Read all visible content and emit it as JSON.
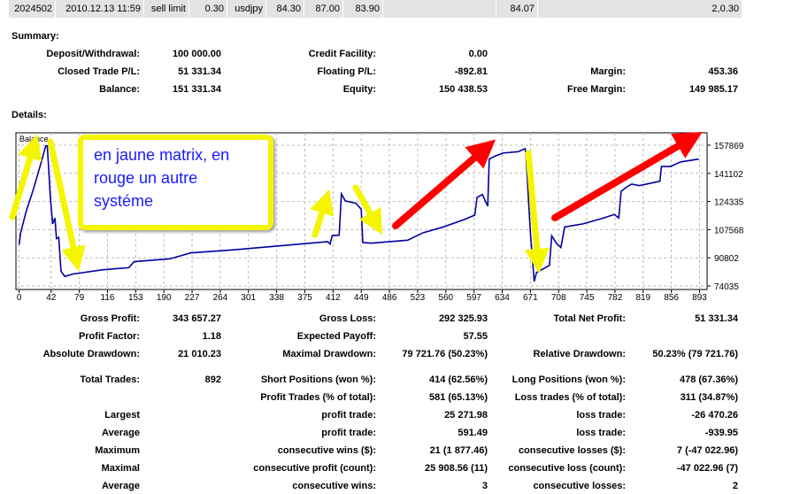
{
  "order_row": [
    "2024502",
    "2010.12.13 11:59",
    "sell limit",
    "0.30",
    "usdjpy",
    "84.30",
    "87.00",
    "83.90",
    "",
    "84.07",
    "2,0.30"
  ],
  "summary": {
    "title": "Summary:",
    "rows": [
      [
        "Deposit/Withdrawal:",
        "100 000.00",
        "Credit Facility:",
        "0.00",
        "",
        ""
      ],
      [
        "Closed Trade P/L:",
        "51 331.34",
        "Floating P/L:",
        "-892.81",
        "Margin:",
        "453.36"
      ],
      [
        "Balance:",
        "151 331.34",
        "Equity:",
        "150 438.53",
        "Free Margin:",
        "149 985.17"
      ]
    ]
  },
  "details": {
    "title": "Details:"
  },
  "annotation": {
    "lines": [
      "en jaune matrix, en",
      "rouge un autre",
      "systéme"
    ]
  },
  "chart_data": {
    "type": "line",
    "title": "Balance",
    "legend": "Balance",
    "xlim": [
      0,
      893
    ],
    "ylim": [
      74035,
      157869
    ],
    "x_ticks": [
      0,
      42,
      79,
      116,
      153,
      190,
      227,
      264,
      301,
      338,
      375,
      412,
      449,
      486,
      523,
      560,
      597,
      634,
      671,
      708,
      745,
      782,
      819,
      856,
      893
    ],
    "y_ticks": [
      74035,
      90802,
      107568,
      124335,
      141102,
      157869
    ],
    "grid": true,
    "series": [
      {
        "name": "Balance",
        "color": "#0000a0",
        "points": [
          [
            0,
            98600
          ],
          [
            2,
            105700
          ],
          [
            9,
            118000
          ],
          [
            19,
            132000
          ],
          [
            28,
            146100
          ],
          [
            35,
            157500
          ],
          [
            37,
            157500
          ],
          [
            41,
            126800
          ],
          [
            44,
            111000
          ],
          [
            47,
            114500
          ],
          [
            49,
            102200
          ],
          [
            52,
            103000
          ],
          [
            55,
            82800
          ],
          [
            60,
            79700
          ],
          [
            70,
            81100
          ],
          [
            110,
            83700
          ],
          [
            144,
            84900
          ],
          [
            151,
            88500
          ],
          [
            198,
            90200
          ],
          [
            225,
            93700
          ],
          [
            280,
            95500
          ],
          [
            347,
            98100
          ],
          [
            405,
            100400
          ],
          [
            408,
            99000
          ],
          [
            411,
            104000
          ],
          [
            420,
            104300
          ],
          [
            423,
            128900
          ],
          [
            428,
            124700
          ],
          [
            442,
            123300
          ],
          [
            449,
            119700
          ],
          [
            451,
            99900
          ],
          [
            462,
            99500
          ],
          [
            510,
            101300
          ],
          [
            530,
            105700
          ],
          [
            557,
            109200
          ],
          [
            584,
            113600
          ],
          [
            598,
            116200
          ],
          [
            601,
            126800
          ],
          [
            608,
            128500
          ],
          [
            615,
            121500
          ],
          [
            617,
            149600
          ],
          [
            625,
            151400
          ],
          [
            635,
            153200
          ],
          [
            655,
            154000
          ],
          [
            664,
            155800
          ],
          [
            665,
            153200
          ],
          [
            671,
            105700
          ],
          [
            676,
            76700
          ],
          [
            679,
            82000
          ],
          [
            696,
            86300
          ],
          [
            699,
            103900
          ],
          [
            705,
            99500
          ],
          [
            711,
            96900
          ],
          [
            716,
            109200
          ],
          [
            740,
            111000
          ],
          [
            767,
            114500
          ],
          [
            781,
            116600
          ],
          [
            787,
            114500
          ],
          [
            790,
            130300
          ],
          [
            797,
            132900
          ],
          [
            804,
            134700
          ],
          [
            814,
            133800
          ],
          [
            841,
            136400
          ],
          [
            843,
            145200
          ],
          [
            855,
            145200
          ],
          [
            868,
            147900
          ],
          [
            892,
            149600
          ]
        ]
      }
    ]
  },
  "stats": [
    [
      "Gross Profit:",
      "343 657.27",
      "Gross Loss:",
      "292 325.93",
      "Total Net Profit:",
      "51 331.34"
    ],
    [
      "Profit Factor:",
      "1.18",
      "Expected Payoff:",
      "57.55",
      "",
      ""
    ],
    [
      "Absolute Drawdown:",
      "21 010.23",
      "Maximal Drawdown:",
      "79 721.76 (50.23%)",
      "Relative Drawdown:",
      "50.23% (79 721.76)"
    ],
    [
      "Total Trades:",
      "892",
      "Short Positions (won %):",
      "414 (62.56%)",
      "Long Positions (won %):",
      "478 (67.36%)"
    ],
    [
      "",
      "",
      "Profit Trades (% of total):",
      "581 (65.13%)",
      "Loss trades (% of total):",
      "311 (34.87%)"
    ],
    [
      "Largest",
      "",
      "profit trade:",
      "25 271.98",
      "loss trade:",
      "-26 470.26"
    ],
    [
      "Average",
      "",
      "profit trade:",
      "591.49",
      "loss trade:",
      "-939.95"
    ],
    [
      "Maximum",
      "",
      "consecutive wins ($):",
      "21 (1 877.46)",
      "consecutive losses ($):",
      "7 (-47 022.96)"
    ],
    [
      "Maximal",
      "",
      "consecutive profit (count):",
      "25 908.56 (11)",
      "consecutive loss (count):",
      "-47 022.96 (7)"
    ],
    [
      "Average",
      "",
      "consecutive wins:",
      "3",
      "consecutive losses:",
      "2"
    ]
  ]
}
